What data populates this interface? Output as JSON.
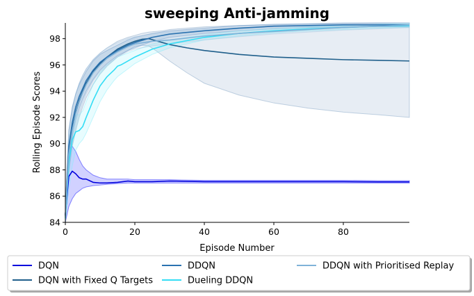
{
  "chart_data": {
    "type": "line",
    "title": "sweeping Anti-jamming",
    "xlabel": "Episode Number",
    "ylabel": "Rolling Episode Scores",
    "xlim": [
      0,
      99
    ],
    "ylim": [
      84,
      99.2
    ],
    "xticks": [
      0,
      20,
      40,
      60,
      80
    ],
    "yticks": [
      84,
      86,
      88,
      90,
      92,
      94,
      96,
      98
    ],
    "grid": false,
    "legend_position": "bottom",
    "series": [
      {
        "name": "DQN",
        "color": "#0000dd",
        "band_color": "#0000ff",
        "x": [
          0,
          1,
          2,
          3,
          4,
          5,
          6,
          8,
          10,
          12,
          15,
          18,
          20,
          25,
          30,
          40,
          50,
          60,
          70,
          80,
          90,
          99
        ],
        "values": [
          84.6,
          87.5,
          87.9,
          87.7,
          87.4,
          87.3,
          87.3,
          87.05,
          87.0,
          87.0,
          87.05,
          87.15,
          87.1,
          87.1,
          87.15,
          87.1,
          87.1,
          87.1,
          87.1,
          87.1,
          87.08,
          87.08
        ],
        "lower": [
          84.0,
          85.2,
          85.8,
          86.2,
          86.4,
          86.6,
          86.7,
          86.8,
          86.85,
          86.9,
          86.95,
          87.0,
          87.0,
          87.0,
          87.0,
          87.0,
          87.0,
          87.0,
          87.0,
          87.0,
          87.0,
          87.0
        ],
        "upper": [
          85.5,
          89.6,
          89.8,
          89.4,
          88.8,
          88.3,
          88.0,
          87.6,
          87.4,
          87.3,
          87.3,
          87.3,
          87.25,
          87.25,
          87.25,
          87.2,
          87.2,
          87.2,
          87.2,
          87.2,
          87.18,
          87.18
        ]
      },
      {
        "name": "DQN with Fixed Q Targets",
        "color": "#1f5f8b",
        "band_color": "#7a9dc0",
        "x": [
          0,
          1,
          2,
          3,
          4,
          5,
          6,
          8,
          10,
          12,
          15,
          18,
          20,
          22,
          24,
          26,
          28,
          30,
          35,
          40,
          50,
          60,
          70,
          80,
          90,
          99
        ],
        "values": [
          84.5,
          89.5,
          91.2,
          92.4,
          93.3,
          94.0,
          94.6,
          95.5,
          96.1,
          96.6,
          97.2,
          97.6,
          97.8,
          97.95,
          98.0,
          97.85,
          97.7,
          97.55,
          97.3,
          97.1,
          96.8,
          96.6,
          96.5,
          96.4,
          96.35,
          96.3
        ],
        "lower": [
          84.0,
          87.8,
          89.8,
          91.0,
          92.0,
          92.8,
          93.5,
          94.5,
          95.3,
          95.9,
          96.6,
          97.1,
          97.4,
          97.5,
          97.45,
          97.1,
          96.7,
          96.3,
          95.4,
          94.6,
          93.7,
          93.1,
          92.7,
          92.4,
          92.2,
          92.0
        ],
        "upper": [
          85.2,
          91.0,
          92.7,
          93.8,
          94.6,
          95.2,
          95.7,
          96.4,
          96.9,
          97.3,
          97.8,
          98.1,
          98.25,
          98.4,
          98.5,
          98.55,
          98.6,
          98.7,
          98.8,
          98.9,
          99.0,
          99.05,
          99.1,
          99.15,
          99.2,
          99.2
        ]
      },
      {
        "name": "DDQN",
        "color": "#2a72b0",
        "band_color": "#5c8fc4",
        "x": [
          0,
          1,
          2,
          3,
          4,
          5,
          6,
          8,
          10,
          12,
          15,
          18,
          20,
          25,
          30,
          40,
          50,
          60,
          70,
          80,
          90,
          99
        ],
        "values": [
          84.5,
          89.8,
          91.6,
          92.8,
          93.6,
          94.2,
          94.8,
          95.6,
          96.2,
          96.6,
          97.1,
          97.5,
          97.7,
          98.1,
          98.35,
          98.6,
          98.8,
          98.95,
          99.0,
          99.05,
          99.05,
          99.05
        ],
        "lower": [
          84.0,
          88.5,
          90.5,
          91.8,
          92.7,
          93.4,
          94.0,
          94.9,
          95.6,
          96.1,
          96.7,
          97.1,
          97.3,
          97.8,
          98.1,
          98.4,
          98.6,
          98.75,
          98.85,
          98.9,
          98.9,
          98.9
        ],
        "upper": [
          85.0,
          91.0,
          92.8,
          93.8,
          94.5,
          95.0,
          95.5,
          96.3,
          96.8,
          97.1,
          97.5,
          97.9,
          98.1,
          98.4,
          98.6,
          98.8,
          99.0,
          99.1,
          99.15,
          99.2,
          99.2,
          99.2
        ]
      },
      {
        "name": "Dueling DDQN",
        "color": "#33ddf5",
        "band_color": "#7eeefa",
        "x": [
          0,
          1,
          2,
          3,
          4,
          5,
          6,
          8,
          10,
          12,
          14,
          15,
          16,
          18,
          20,
          25,
          30,
          40,
          50,
          60,
          70,
          80,
          90,
          99
        ],
        "values": [
          84.3,
          88.5,
          90.3,
          90.9,
          91.0,
          91.3,
          92.0,
          93.3,
          94.4,
          95.1,
          95.6,
          95.9,
          96.0,
          96.3,
          96.6,
          97.2,
          97.6,
          98.1,
          98.4,
          98.6,
          98.75,
          98.85,
          98.95,
          99.0
        ],
        "lower": [
          84.0,
          86.5,
          88.3,
          89.5,
          90.0,
          90.3,
          90.8,
          92.0,
          93.2,
          94.1,
          94.8,
          95.1,
          95.3,
          95.7,
          96.1,
          96.8,
          97.3,
          97.9,
          98.2,
          98.45,
          98.6,
          98.7,
          98.8,
          98.85
        ],
        "upper": [
          85.0,
          90.0,
          91.8,
          92.2,
          92.2,
          92.5,
          93.2,
          94.5,
          95.4,
          96.0,
          96.4,
          96.6,
          96.7,
          96.9,
          97.1,
          97.6,
          97.9,
          98.3,
          98.6,
          98.75,
          98.9,
          99.0,
          99.1,
          99.15
        ]
      },
      {
        "name": "DDQN with Prioritised Replay",
        "color": "#7fb2d8",
        "band_color": "#a8c8e2",
        "x": [
          0,
          1,
          2,
          3,
          4,
          5,
          6,
          8,
          10,
          12,
          15,
          18,
          20,
          25,
          30,
          40,
          50,
          60,
          70,
          80,
          90,
          99
        ],
        "values": [
          84.4,
          89.2,
          91.0,
          92.3,
          93.2,
          93.9,
          94.5,
          95.4,
          96.0,
          96.5,
          97.0,
          97.4,
          97.6,
          97.8,
          97.9,
          98.2,
          98.4,
          98.55,
          98.7,
          98.85,
          98.95,
          99.05
        ],
        "lower": [
          84.0,
          88.0,
          89.9,
          91.3,
          92.3,
          93.1,
          93.8,
          94.8,
          95.5,
          96.0,
          96.6,
          97.0,
          97.2,
          97.45,
          97.6,
          97.9,
          98.15,
          98.35,
          98.5,
          98.65,
          98.75,
          98.85
        ],
        "upper": [
          85.0,
          90.8,
          92.6,
          93.8,
          94.6,
          95.2,
          95.7,
          96.4,
          96.9,
          97.3,
          97.7,
          98.0,
          98.15,
          98.35,
          98.5,
          98.7,
          98.85,
          98.95,
          99.05,
          99.1,
          99.15,
          99.2
        ]
      }
    ]
  }
}
